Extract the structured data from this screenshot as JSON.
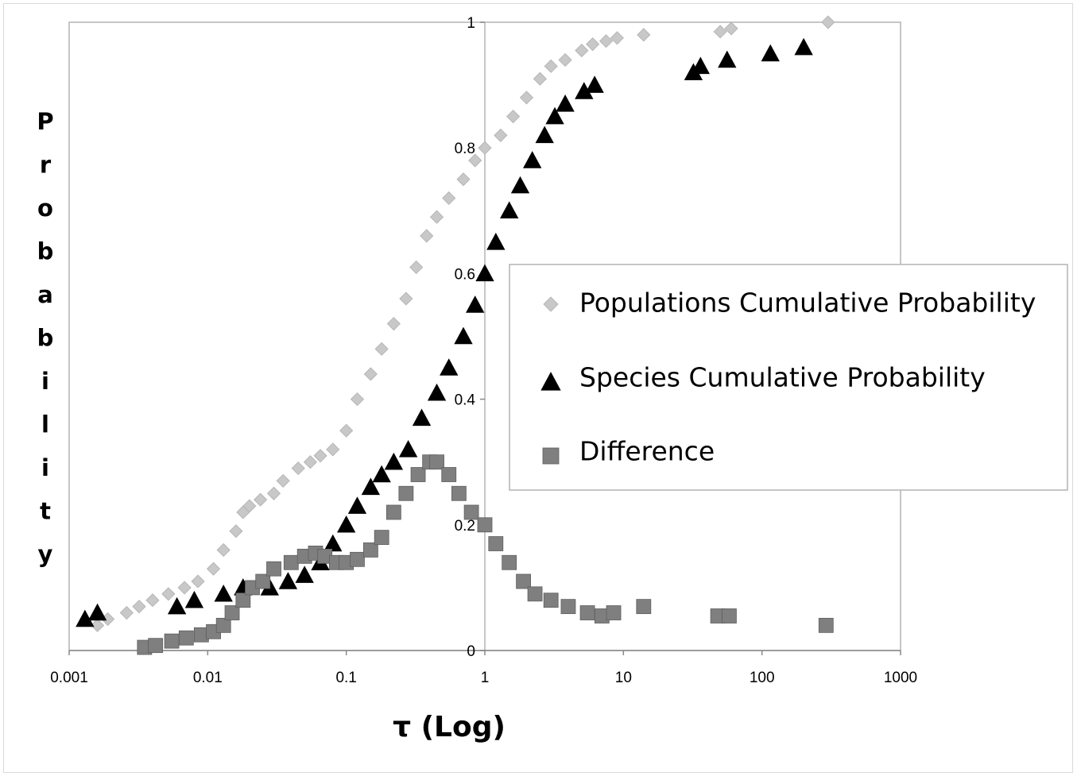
{
  "chart_data": {
    "type": "scatter",
    "title": "",
    "xlabel": "τ (Log)",
    "ylabel": "Probability",
    "xscale": "log",
    "xlim": [
      0.001,
      1000
    ],
    "ylim": [
      0,
      1
    ],
    "x_ticks": [
      "0.001",
      "0.01",
      "0.1",
      "1",
      "10",
      "100",
      "1000"
    ],
    "y_ticks": [
      "0",
      "0.2",
      "0.4",
      "0.6",
      "0.8",
      "1"
    ],
    "grid": false,
    "legend_position": "right",
    "series": [
      {
        "name": "Populations Cumulative Probability",
        "marker": "diamond",
        "color": "#c8c8c8",
        "x": [
          0.0016,
          0.0019,
          0.0026,
          0.0032,
          0.004,
          0.0052,
          0.0068,
          0.0085,
          0.011,
          0.013,
          0.016,
          0.018,
          0.02,
          0.024,
          0.03,
          0.035,
          0.045,
          0.055,
          0.065,
          0.08,
          0.1,
          0.12,
          0.15,
          0.18,
          0.22,
          0.27,
          0.32,
          0.38,
          0.45,
          0.55,
          0.7,
          0.85,
          1.0,
          1.3,
          1.6,
          2.0,
          2.5,
          3.0,
          3.8,
          5.0,
          6.0,
          7.5,
          9.0,
          14,
          50,
          60,
          300
        ],
        "y": [
          0.04,
          0.05,
          0.06,
          0.07,
          0.08,
          0.09,
          0.1,
          0.11,
          0.13,
          0.16,
          0.19,
          0.22,
          0.23,
          0.24,
          0.25,
          0.27,
          0.29,
          0.3,
          0.31,
          0.32,
          0.35,
          0.4,
          0.44,
          0.48,
          0.52,
          0.56,
          0.61,
          0.66,
          0.69,
          0.72,
          0.75,
          0.78,
          0.8,
          0.82,
          0.85,
          0.88,
          0.91,
          0.93,
          0.94,
          0.955,
          0.965,
          0.97,
          0.975,
          0.98,
          0.985,
          0.99,
          1.0
        ]
      },
      {
        "name": "Species Cumulative Probability",
        "marker": "triangle",
        "color": "#000000",
        "x": [
          0.0013,
          0.0016,
          0.006,
          0.008,
          0.013,
          0.018,
          0.028,
          0.038,
          0.05,
          0.065,
          0.08,
          0.1,
          0.12,
          0.15,
          0.18,
          0.22,
          0.28,
          0.35,
          0.45,
          0.55,
          0.7,
          0.85,
          1.0,
          1.2,
          1.5,
          1.8,
          2.2,
          2.7,
          3.2,
          3.8,
          5.2,
          6.2,
          32,
          36,
          56,
          115,
          200
        ],
        "y": [
          0.05,
          0.06,
          0.07,
          0.08,
          0.09,
          0.1,
          0.1,
          0.11,
          0.12,
          0.14,
          0.17,
          0.2,
          0.23,
          0.26,
          0.28,
          0.3,
          0.32,
          0.37,
          0.41,
          0.45,
          0.5,
          0.55,
          0.6,
          0.65,
          0.7,
          0.74,
          0.78,
          0.82,
          0.85,
          0.87,
          0.89,
          0.9,
          0.92,
          0.93,
          0.94,
          0.95,
          0.96
        ]
      },
      {
        "name": "Difference",
        "marker": "square",
        "color": "#7f7f7f",
        "x": [
          0.0035,
          0.0042,
          0.0055,
          0.007,
          0.009,
          0.011,
          0.013,
          0.015,
          0.018,
          0.021,
          0.025,
          0.03,
          0.04,
          0.05,
          0.06,
          0.07,
          0.085,
          0.1,
          0.12,
          0.15,
          0.18,
          0.22,
          0.27,
          0.33,
          0.4,
          0.45,
          0.55,
          0.65,
          0.8,
          1.0,
          1.2,
          1.5,
          1.9,
          2.3,
          3.0,
          4.0,
          5.5,
          7.0,
          8.5,
          14,
          48,
          58,
          290
        ],
        "y": [
          0.005,
          0.008,
          0.015,
          0.02,
          0.025,
          0.03,
          0.04,
          0.06,
          0.08,
          0.1,
          0.11,
          0.13,
          0.14,
          0.15,
          0.155,
          0.15,
          0.14,
          0.14,
          0.145,
          0.16,
          0.18,
          0.22,
          0.25,
          0.28,
          0.3,
          0.3,
          0.28,
          0.25,
          0.22,
          0.2,
          0.17,
          0.14,
          0.11,
          0.09,
          0.08,
          0.07,
          0.06,
          0.055,
          0.06,
          0.07,
          0.055,
          0.055,
          0.04
        ]
      }
    ]
  }
}
